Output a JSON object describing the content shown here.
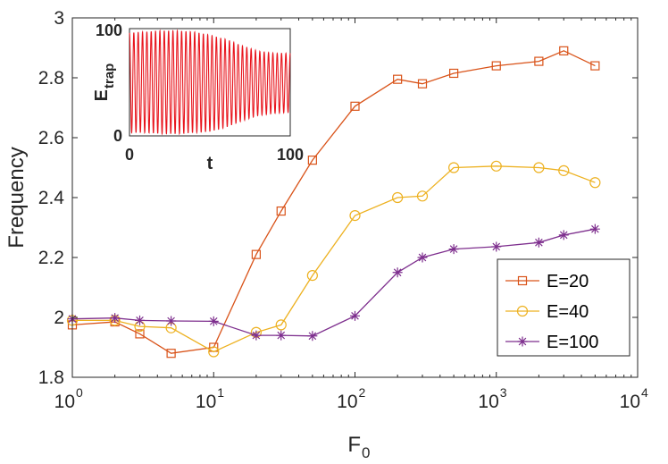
{
  "chart_data": {
    "type": "line",
    "xscale": "log",
    "xlabel_base": "F",
    "xlabel_sub": "0",
    "ylabel": "Frequency",
    "xlim": [
      1,
      10000
    ],
    "ylim": [
      1.8,
      3.0
    ],
    "x_ticks": [
      {
        "value": 1,
        "base": "10",
        "exp": "0"
      },
      {
        "value": 10,
        "base": "10",
        "exp": "1"
      },
      {
        "value": 100,
        "base": "10",
        "exp": "2"
      },
      {
        "value": 1000,
        "base": "10",
        "exp": "3"
      },
      {
        "value": 10000,
        "base": "10",
        "exp": "4"
      }
    ],
    "y_ticks": [
      {
        "value": 1.8,
        "label": "1.8"
      },
      {
        "value": 2.0,
        "label": "2"
      },
      {
        "value": 2.2,
        "label": "2.2"
      },
      {
        "value": 2.4,
        "label": "2.4"
      },
      {
        "value": 2.6,
        "label": "2.6"
      },
      {
        "value": 2.8,
        "label": "2.8"
      },
      {
        "value": 3.0,
        "label": "3"
      }
    ],
    "legend_position": "bottom-right",
    "series": [
      {
        "name": "E=20",
        "color": "#d95319",
        "marker": "square",
        "x": [
          1,
          2,
          3,
          5,
          10,
          20,
          30,
          50,
          100,
          200,
          300,
          500,
          1000,
          2000,
          3000,
          5000
        ],
        "y": [
          1.975,
          1.985,
          1.945,
          1.88,
          1.9,
          2.21,
          2.355,
          2.525,
          2.705,
          2.795,
          2.78,
          2.815,
          2.84,
          2.855,
          2.89,
          2.84
        ]
      },
      {
        "name": "E=40",
        "color": "#edb120",
        "marker": "circle",
        "x": [
          1,
          2,
          3,
          5,
          10,
          20,
          30,
          50,
          100,
          200,
          300,
          500,
          1000,
          2000,
          3000,
          5000
        ],
        "y": [
          1.99,
          1.99,
          1.97,
          1.965,
          1.885,
          1.95,
          1.975,
          2.14,
          2.34,
          2.4,
          2.405,
          2.5,
          2.505,
          2.5,
          2.49,
          2.45
        ]
      },
      {
        "name": "E=100",
        "color": "#7e2f8e",
        "marker": "asterisk",
        "x": [
          1,
          2,
          3,
          5,
          10,
          20,
          30,
          50,
          100,
          200,
          300,
          500,
          1000,
          2000,
          3000,
          5000
        ],
        "y": [
          1.995,
          1.998,
          1.99,
          1.988,
          1.987,
          1.94,
          1.94,
          1.938,
          2.005,
          2.15,
          2.2,
          2.228,
          2.236,
          2.25,
          2.275,
          2.295
        ]
      }
    ],
    "inset": {
      "type": "line",
      "ylabel_base": "E",
      "ylabel_sub": "trap",
      "xlabel": "t",
      "x_tick_labels": [
        "0",
        "100"
      ],
      "y_tick_labels": [
        "0",
        "100"
      ],
      "xlim": [
        0,
        100
      ],
      "ylim": [
        0,
        100
      ],
      "color": "#e8141c",
      "oscillation_cycles": 37,
      "upper_envelope_t": [
        0,
        10,
        20,
        30,
        40,
        50,
        60,
        70,
        80,
        90,
        100
      ],
      "upper_envelope": [
        96,
        97,
        98,
        98,
        97,
        94,
        90,
        84,
        79,
        77,
        77
      ],
      "lower_envelope_t": [
        0,
        10,
        20,
        30,
        40,
        50,
        60,
        70,
        80,
        90,
        100
      ],
      "lower_envelope": [
        3,
        3,
        2,
        2,
        3,
        4,
        8,
        14,
        19,
        21,
        22
      ]
    }
  }
}
